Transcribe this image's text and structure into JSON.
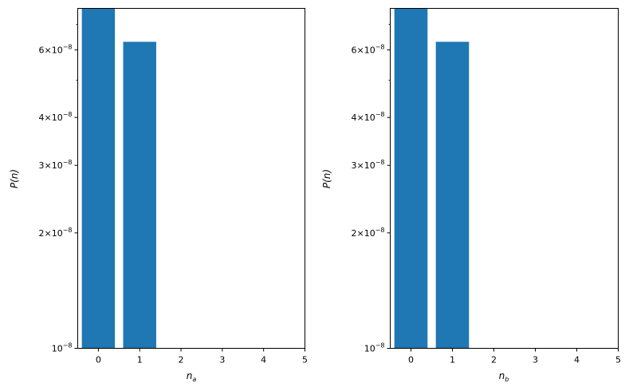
{
  "chart_data": [
    {
      "type": "bar",
      "xlabel": "n",
      "xlabel_subscript": "a",
      "ylabel": "P(n)",
      "yscale": "log",
      "xlim": [
        -0.5,
        5.0
      ],
      "ylim": [
        1e-08,
        7.7e-08
      ],
      "x": [
        0,
        1,
        2,
        3,
        4
      ],
      "values": [
        7.7e-08,
        6.3e-08,
        0,
        0,
        0
      ],
      "bar_width": 0.8,
      "bar_color": "#1f77b4",
      "xticks": [
        0,
        1,
        2,
        3,
        4,
        5
      ],
      "xtick_labels": [
        "0",
        "1",
        "2",
        "3",
        "4",
        "5"
      ],
      "yticks_major": [
        {
          "value": 1e-08,
          "mantissa": "",
          "times": "",
          "base": "10",
          "exponent": "−8"
        },
        {
          "value": 2e-08,
          "mantissa": "2",
          "times": "×",
          "base": "10",
          "exponent": "−8"
        },
        {
          "value": 3e-08,
          "mantissa": "3",
          "times": "×",
          "base": "10",
          "exponent": "−8"
        },
        {
          "value": 4e-08,
          "mantissa": "4",
          "times": "×",
          "base": "10",
          "exponent": "−8"
        },
        {
          "value": 6e-08,
          "mantissa": "6",
          "times": "×",
          "base": "10",
          "exponent": "−8"
        }
      ],
      "yticks_minor": [
        5e-08,
        7e-08
      ]
    },
    {
      "type": "bar",
      "xlabel": "n",
      "xlabel_subscript": "b",
      "ylabel": "P(n)",
      "yscale": "log",
      "xlim": [
        -0.5,
        5.0
      ],
      "ylim": [
        1e-08,
        7.7e-08
      ],
      "x": [
        0,
        1,
        2,
        3,
        4
      ],
      "values": [
        7.7e-08,
        6.3e-08,
        0,
        0,
        0
      ],
      "bar_width": 0.8,
      "bar_color": "#1f77b4",
      "xticks": [
        0,
        1,
        2,
        3,
        4,
        5
      ],
      "xtick_labels": [
        "0",
        "1",
        "2",
        "3",
        "4",
        "5"
      ],
      "yticks_major": [
        {
          "value": 1e-08,
          "mantissa": "",
          "times": "",
          "base": "10",
          "exponent": "−8"
        },
        {
          "value": 2e-08,
          "mantissa": "2",
          "times": "×",
          "base": "10",
          "exponent": "−8"
        },
        {
          "value": 3e-08,
          "mantissa": "3",
          "times": "×",
          "base": "10",
          "exponent": "−8"
        },
        {
          "value": 4e-08,
          "mantissa": "4",
          "times": "×",
          "base": "10",
          "exponent": "−8"
        },
        {
          "value": 6e-08,
          "mantissa": "6",
          "times": "×",
          "base": "10",
          "exponent": "−8"
        }
      ],
      "yticks_minor": [
        5e-08,
        7e-08
      ]
    }
  ]
}
